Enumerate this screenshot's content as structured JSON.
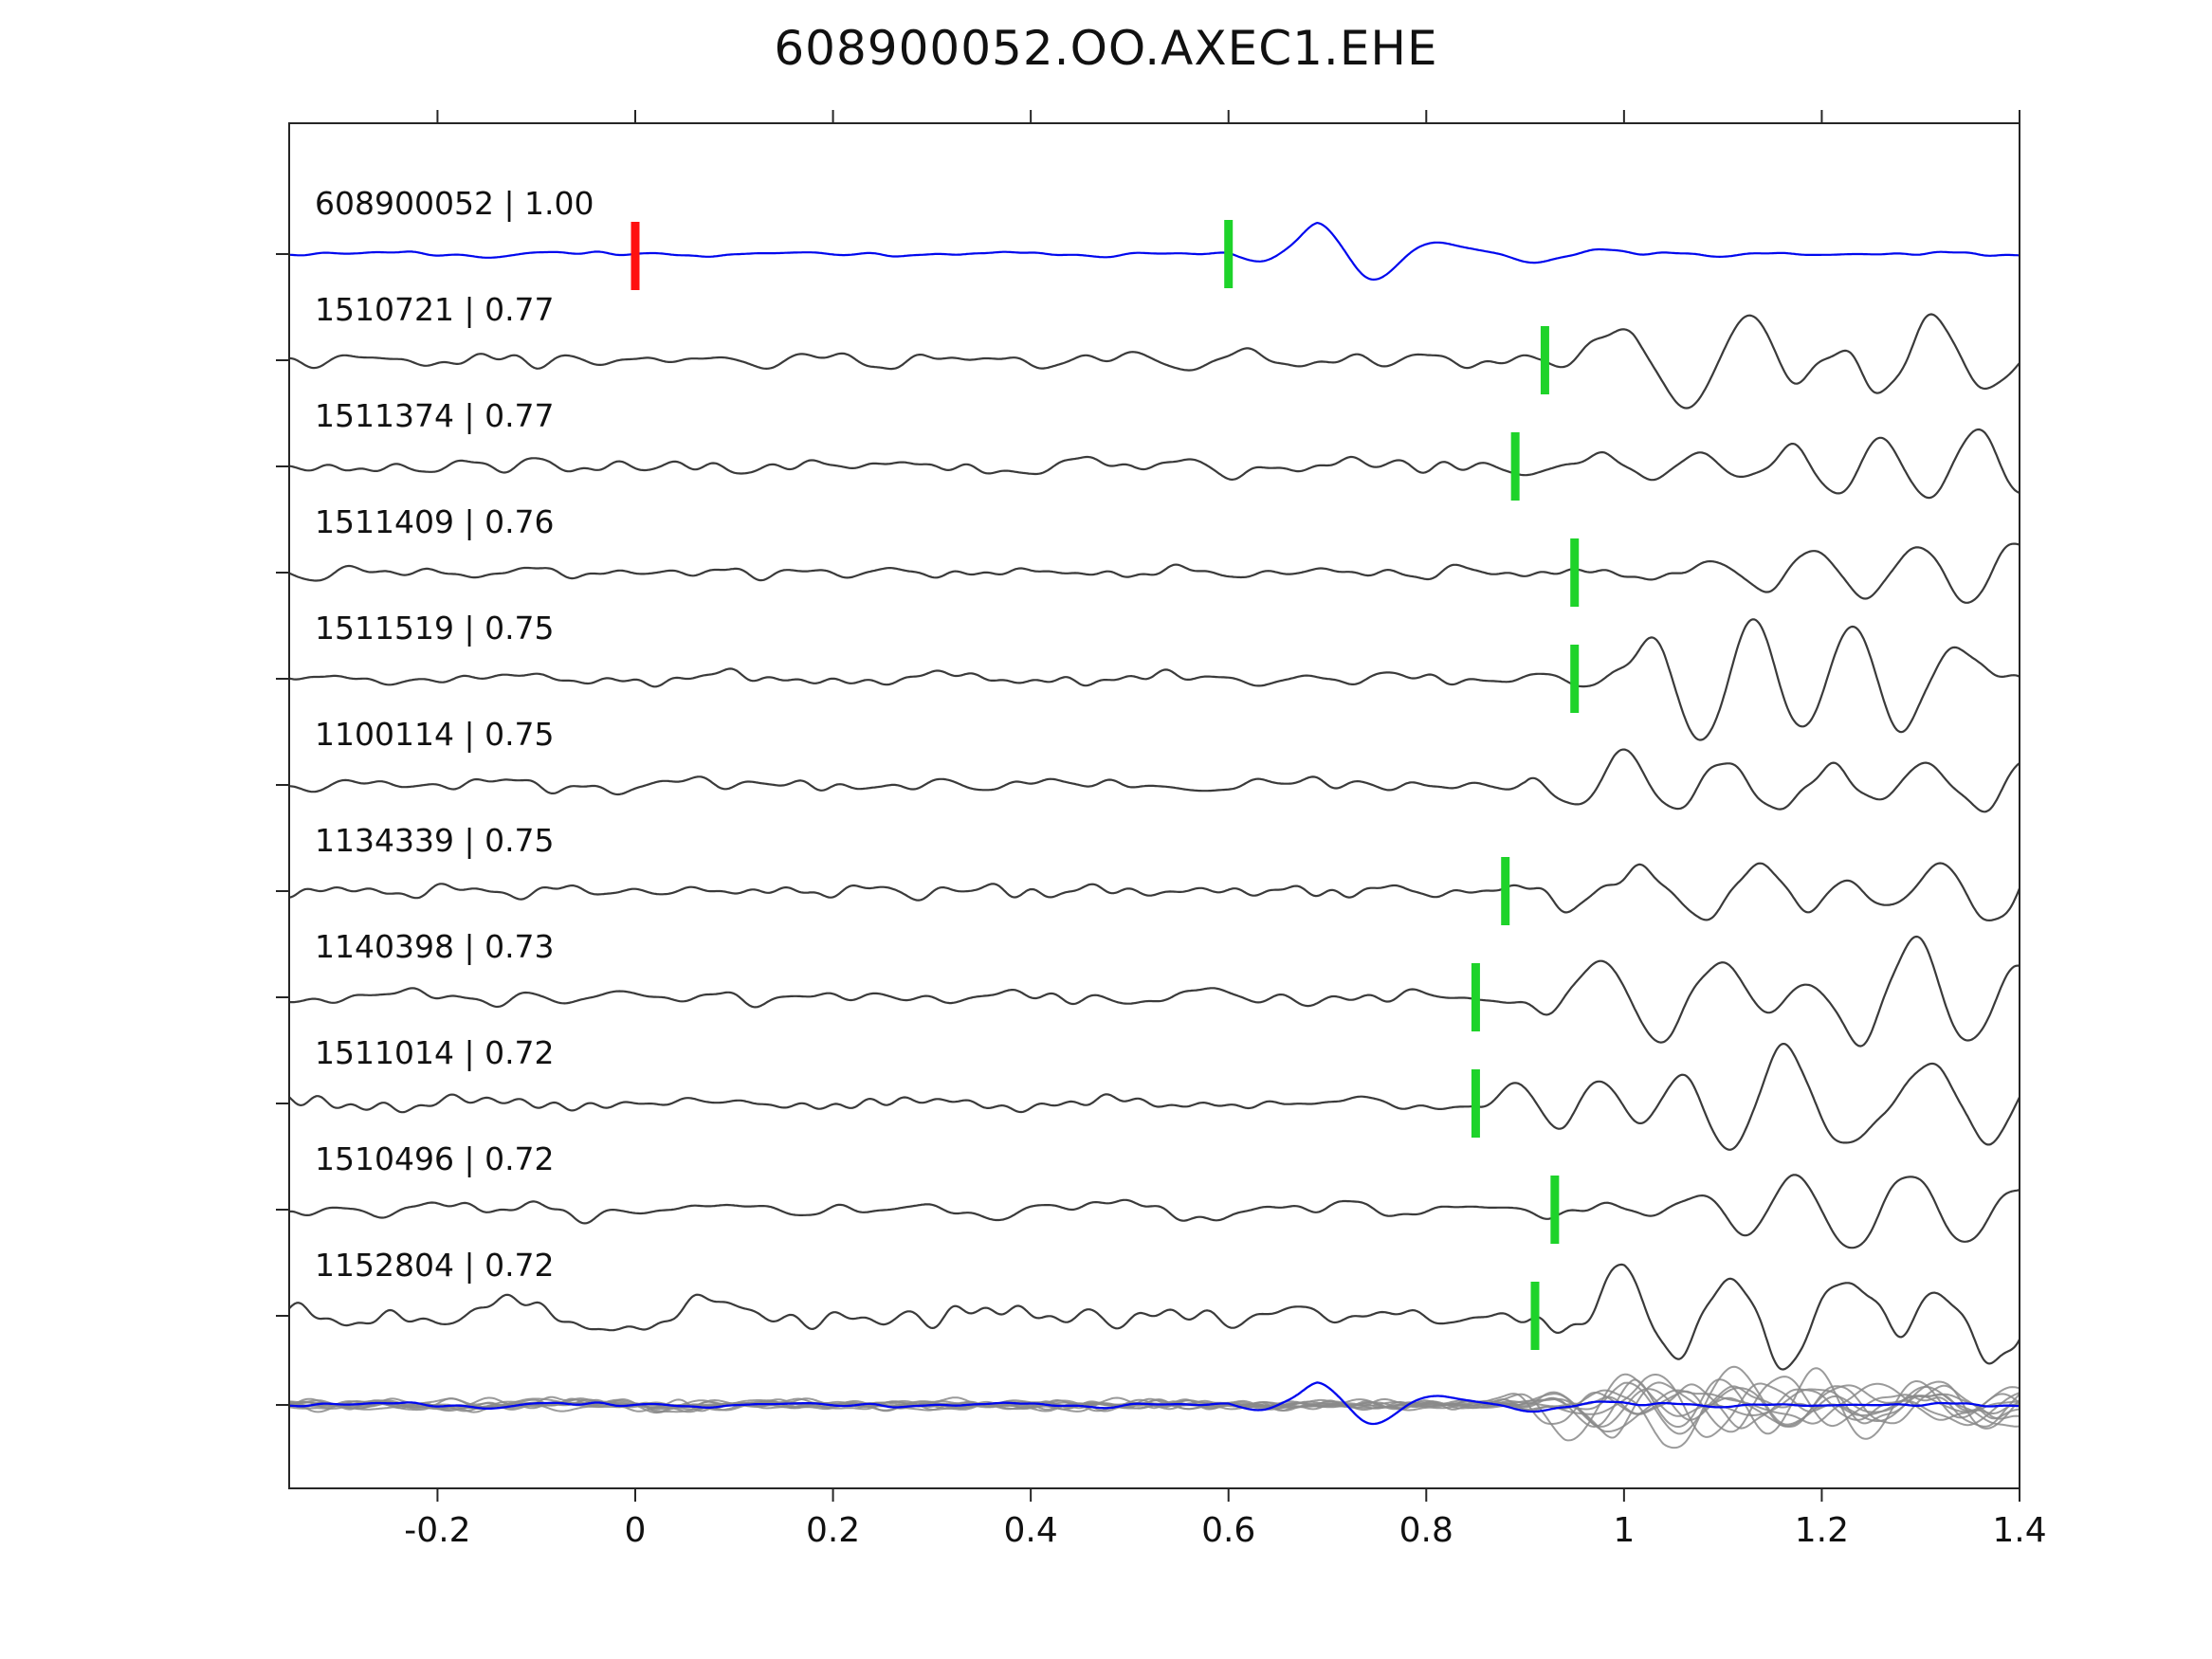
{
  "title": "608900052.OO.AXEC1.EHE",
  "chart_data": {
    "type": "line",
    "subtype": "seismic-waveform-correlation",
    "title": "608900052.OO.AXEC1.EHE",
    "xlabel": "",
    "ylabel": "",
    "x_range": [
      -0.35,
      1.4
    ],
    "x_ticks": [
      -0.2,
      0,
      0.2,
      0.4,
      0.6,
      0.8,
      1,
      1.2,
      1.4
    ],
    "x_tick_labels": [
      "-0.2",
      "0",
      "0.2",
      "0.4",
      "0.6",
      "0.8",
      "1",
      "1.2",
      "1.4"
    ],
    "grid": false,
    "legend": false,
    "colors": {
      "template": "#0008ee",
      "detection": "#3a3a3a",
      "overlay": "#8a8a8a",
      "pick": "#1ed32a",
      "template_pick": "#ff1111",
      "axis": "#262626",
      "text": "#111111"
    },
    "traces": [
      {
        "id": "608900052",
        "label": "608900052 | 1.00",
        "cc": 1.0,
        "kind": "template",
        "pick": 0.6,
        "ref_pick": 0.0,
        "onset": 0.6,
        "noise": 1.2,
        "amp": 46,
        "sustain": 0,
        "seed": 101
      },
      {
        "id": "1510721",
        "label": "1510721 | 0.77",
        "cc": 0.77,
        "kind": "detection",
        "pick": 0.92,
        "ref_pick": null,
        "onset": 0.92,
        "noise": 5,
        "amp": 60,
        "sustain": 0.55,
        "seed": 202
      },
      {
        "id": "1511374",
        "label": "1511374 | 0.77",
        "cc": 0.77,
        "kind": "detection",
        "pick": 0.89,
        "ref_pick": null,
        "onset": 0.89,
        "noise": 5,
        "amp": 58,
        "sustain": 0.55,
        "seed": 303
      },
      {
        "id": "1511409",
        "label": "1511409 | 0.76",
        "cc": 0.76,
        "kind": "detection",
        "pick": 0.95,
        "ref_pick": null,
        "onset": 0.95,
        "noise": 4,
        "amp": 66,
        "sustain": 0.55,
        "seed": 404
      },
      {
        "id": "1511519",
        "label": "1511519 | 0.75",
        "cc": 0.75,
        "kind": "detection",
        "pick": 0.95,
        "ref_pick": null,
        "onset": 0.95,
        "noise": 4.5,
        "amp": 62,
        "sustain": 0.55,
        "seed": 505
      },
      {
        "id": "1100114",
        "label": "1100114 | 0.75",
        "cc": 0.75,
        "kind": "detection",
        "pick": null,
        "ref_pick": null,
        "onset": 0.9,
        "noise": 4.5,
        "amp": 52,
        "sustain": 0.5,
        "seed": 606
      },
      {
        "id": "1134339",
        "label": "1134339 | 0.75",
        "cc": 0.75,
        "kind": "detection",
        "pick": 0.88,
        "ref_pick": null,
        "onset": 0.88,
        "noise": 5,
        "amp": 56,
        "sustain": 0.55,
        "seed": 707
      },
      {
        "id": "1140398",
        "label": "1140398 | 0.73",
        "cc": 0.73,
        "kind": "detection",
        "pick": 0.85,
        "ref_pick": null,
        "onset": 0.85,
        "noise": 5,
        "amp": 58,
        "sustain": 0.55,
        "seed": 808
      },
      {
        "id": "1511014",
        "label": "1511014 | 0.72",
        "cc": 0.72,
        "kind": "detection",
        "pick": 0.85,
        "ref_pick": null,
        "onset": 0.85,
        "noise": 4,
        "amp": 62,
        "sustain": 0.55,
        "seed": 909
      },
      {
        "id": "1510496",
        "label": "1510496 | 0.72",
        "cc": 0.72,
        "kind": "detection",
        "pick": 0.93,
        "ref_pick": null,
        "onset": 0.93,
        "noise": 5,
        "amp": 60,
        "sustain": 0.55,
        "seed": 1010
      },
      {
        "id": "1152804",
        "label": "1152804 | 0.72",
        "cc": 0.72,
        "kind": "detection",
        "pick": 0.91,
        "ref_pick": null,
        "onset": 0.91,
        "noise": 9,
        "amp": 54,
        "sustain": 0.5,
        "seed": 1111
      }
    ],
    "overlay": {
      "description": "all detections superimposed with template",
      "detection_onsets": [
        0.92,
        0.89,
        0.95,
        0.95,
        0.9,
        0.88,
        0.85,
        0.85,
        0.93,
        0.91
      ],
      "detection_amp": 40,
      "detection_noise": 3,
      "detection_sustain": 0.5,
      "template_onset": 0.6,
      "template_amp": 34,
      "template_noise": 1.2,
      "seeds": [
        2001,
        2002,
        2003,
        2004,
        2005,
        2006,
        2007,
        2008,
        2009,
        2010
      ],
      "template_seed": 101
    }
  }
}
